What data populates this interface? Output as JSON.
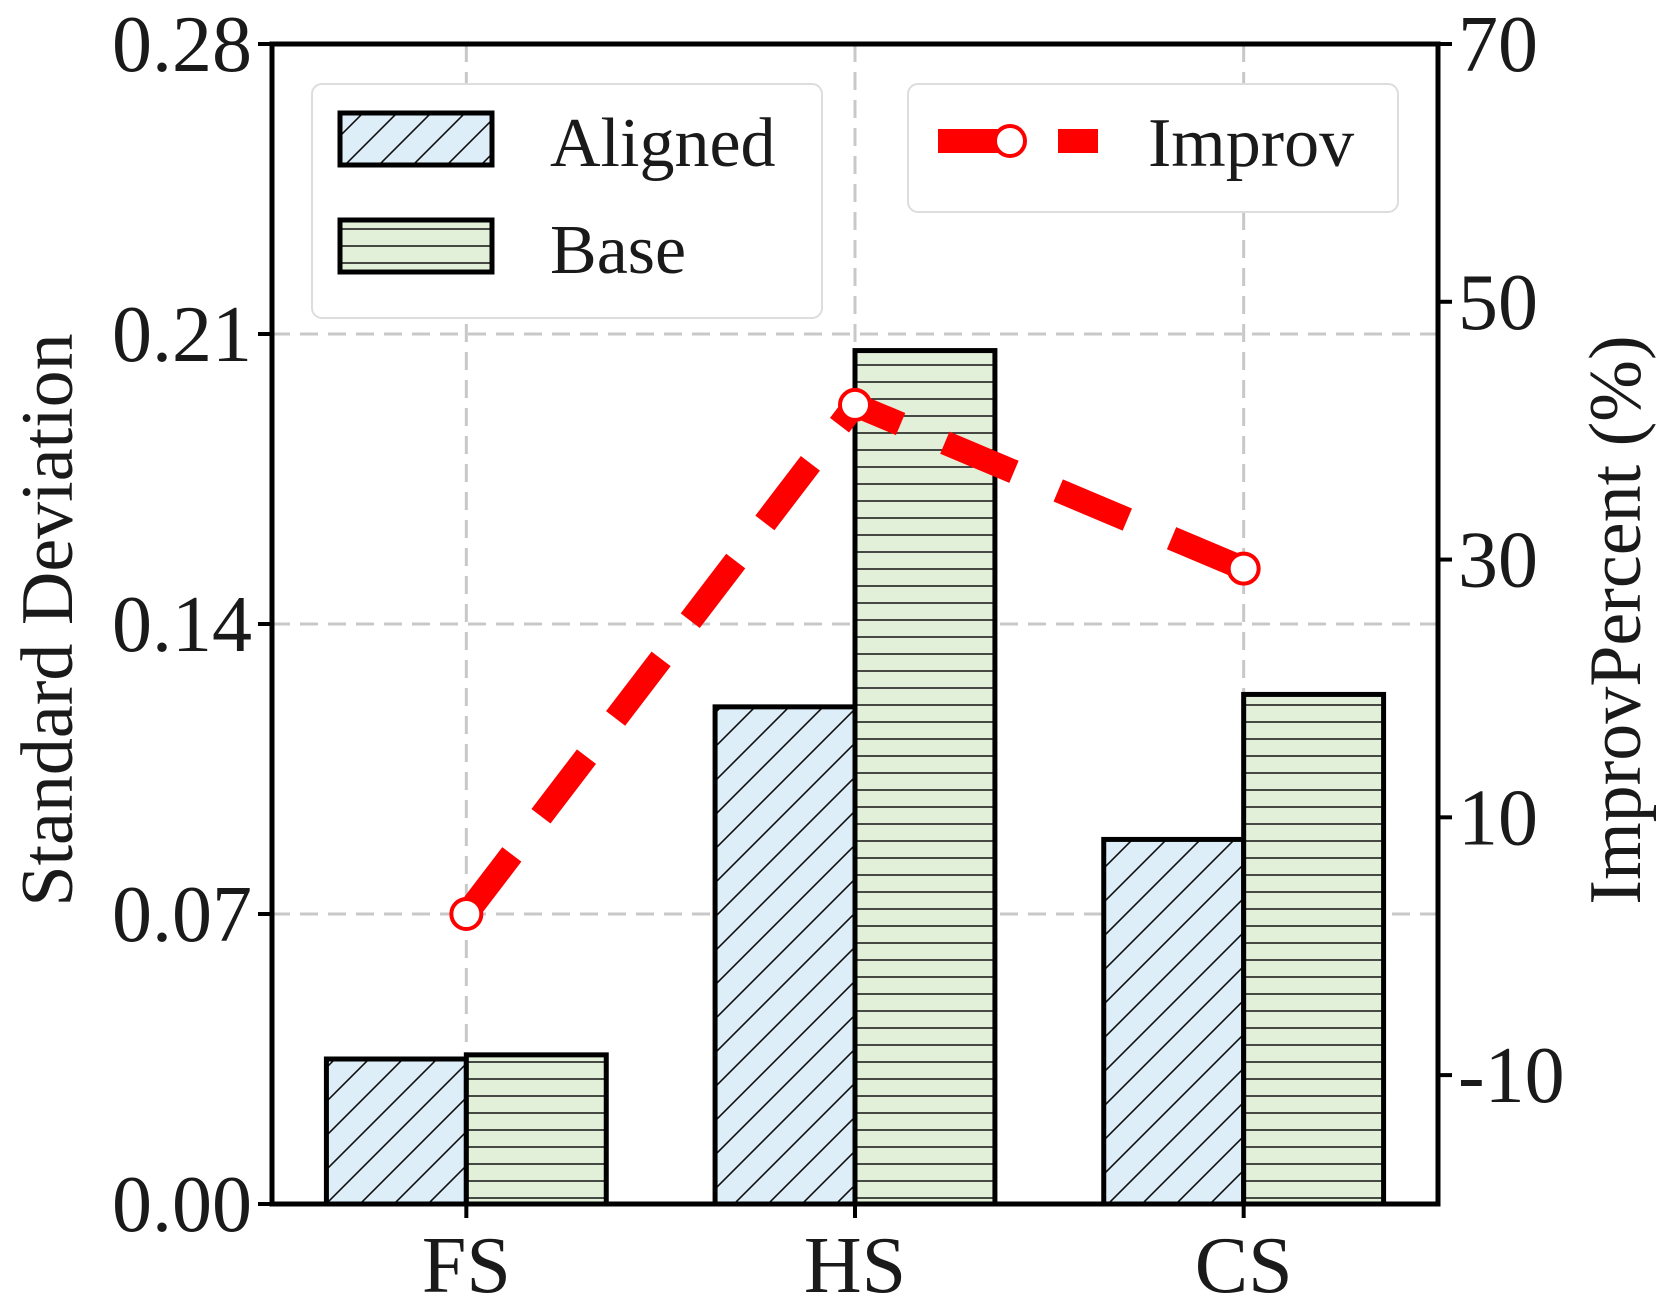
{
  "chart_data": {
    "type": "bar",
    "categories": [
      "FS",
      "HS",
      "CS"
    ],
    "series": [
      {
        "name": "Aligned",
        "values": [
          0.035,
          0.12,
          0.088
        ],
        "color": "#ddeef9",
        "hatch": "diagonal",
        "axis": "left"
      },
      {
        "name": "Base",
        "values": [
          0.036,
          0.206,
          0.123
        ],
        "color": "#e2efd9",
        "hatch": "horizontal",
        "axis": "left"
      }
    ],
    "line_series": {
      "name": "Improv",
      "values": [
        2.5,
        42.0,
        29.3
      ],
      "color": "#ff0000",
      "axis": "right",
      "style": "dashed",
      "marker": "open-circle"
    },
    "ylabel": "Standard Deviation",
    "ylabel_right": "ImprovPercent (%)",
    "ylim": [
      0,
      0.28
    ],
    "ylim_right": [
      -20,
      70
    ],
    "yticks": [
      "0.00",
      "0.07",
      "0.14",
      "0.21",
      "0.28"
    ],
    "yticks_right": [
      "-10",
      "10",
      "30",
      "50",
      "70"
    ],
    "grid": true,
    "legend_bars_position": "top-left",
    "legend_line_position": "top-right"
  }
}
